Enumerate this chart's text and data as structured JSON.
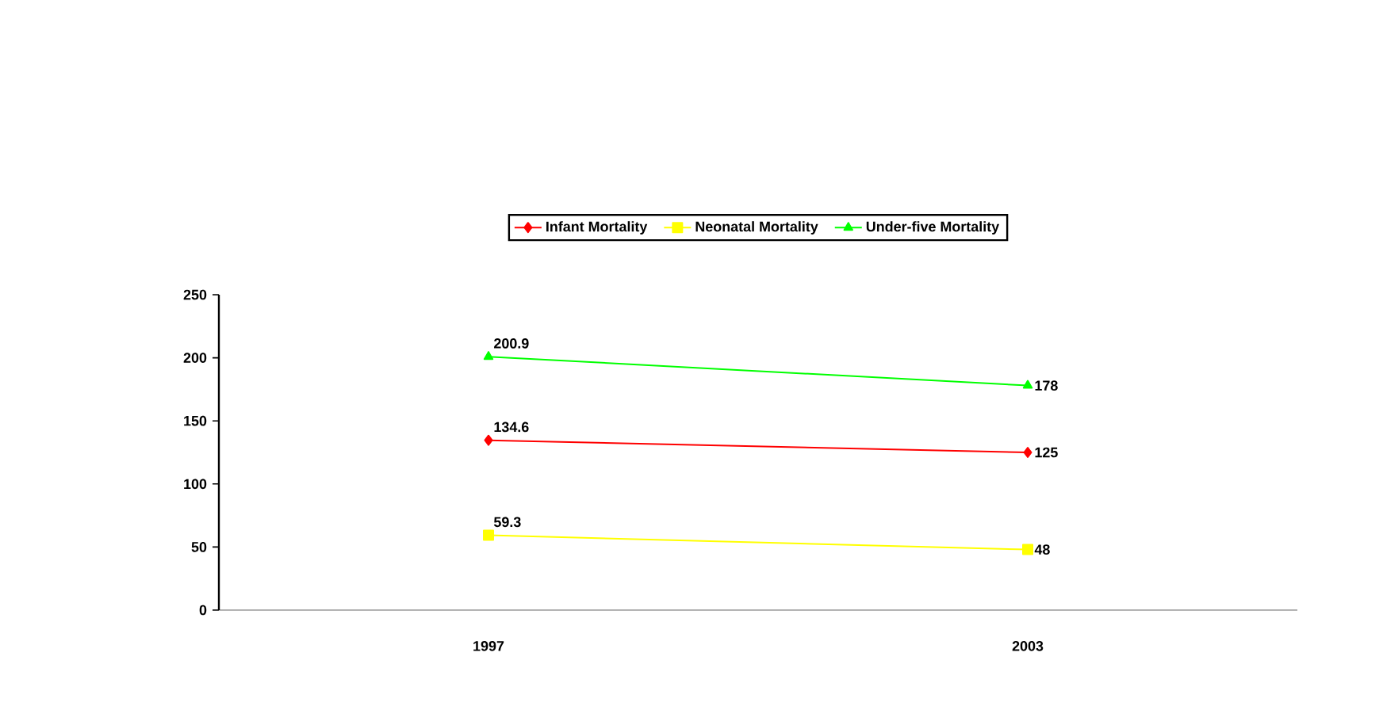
{
  "chart_data": {
    "type": "line",
    "categories": [
      "1997",
      "2003"
    ],
    "series": [
      {
        "name": "Infant Mortality",
        "color": "#ff0000",
        "marker": "diamond",
        "values": [
          134.6,
          125
        ]
      },
      {
        "name": "Neonatal Mortality",
        "color": "#ffff00",
        "marker": "square",
        "values": [
          59.3,
          48
        ]
      },
      {
        "name": "Under-five Mortality",
        "color": "#00ff00",
        "marker": "triangle",
        "values": [
          200.9,
          178
        ]
      }
    ],
    "ylim": [
      0,
      250
    ],
    "yticks": [
      0,
      50,
      100,
      150,
      200,
      250
    ],
    "data_labels": true,
    "legend": "top",
    "grid": false
  }
}
